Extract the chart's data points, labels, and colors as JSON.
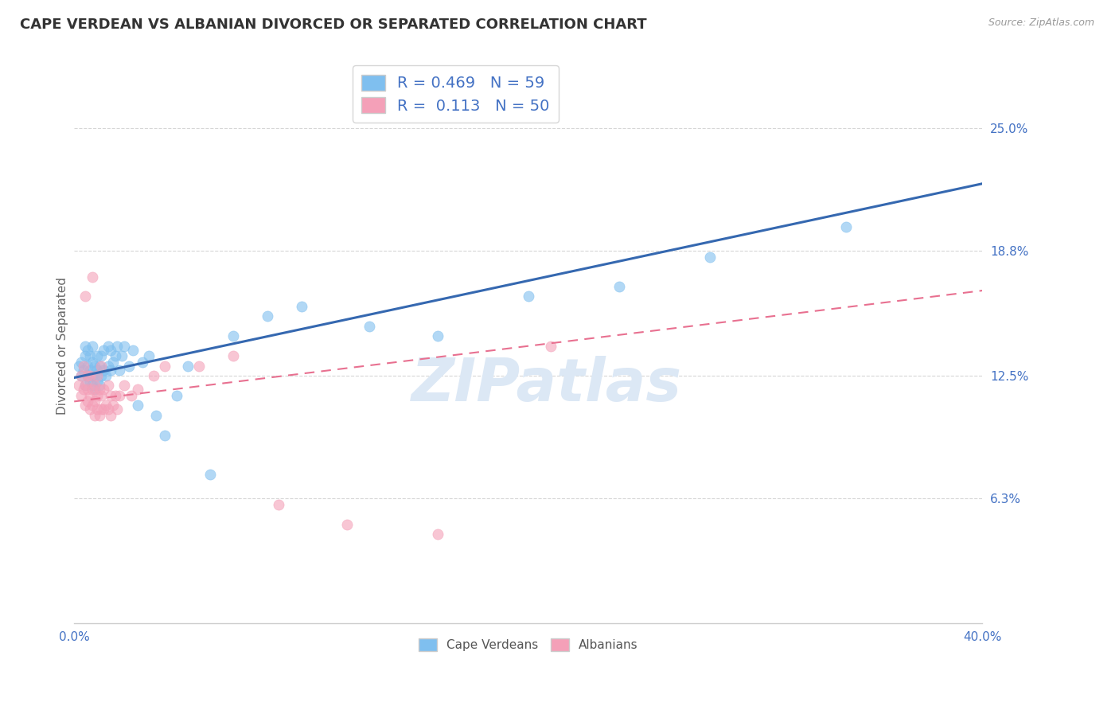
{
  "title": "CAPE VERDEAN VS ALBANIAN DIVORCED OR SEPARATED CORRELATION CHART",
  "source_text": "Source: ZipAtlas.com",
  "ylabel": "Divorced or Separated",
  "xlim": [
    0.0,
    0.4
  ],
  "ylim": [
    0.0,
    0.28
  ],
  "yticks": [
    0.063,
    0.125,
    0.188,
    0.25
  ],
  "ytick_labels": [
    "6.3%",
    "12.5%",
    "18.8%",
    "25.0%"
  ],
  "cape_verdean_R": 0.469,
  "cape_verdean_N": 59,
  "albanian_R": 0.113,
  "albanian_N": 50,
  "blue_color": "#7fbfef",
  "pink_color": "#f4a0b8",
  "blue_line_color": "#3568b0",
  "pink_line_color": "#e87090",
  "background_color": "#ffffff",
  "grid_color": "#bbbbbb",
  "legend_text_color": "#4472c4",
  "blue_line_y0": 0.124,
  "blue_line_y1": 0.222,
  "pink_line_y0": 0.112,
  "pink_line_y1": 0.168,
  "watermark": "ZIPatlas",
  "title_fontsize": 13,
  "axis_label_fontsize": 11,
  "tick_fontsize": 11,
  "legend_fontsize": 14,
  "cv_x": [
    0.002,
    0.003,
    0.003,
    0.004,
    0.005,
    0.005,
    0.005,
    0.006,
    0.006,
    0.006,
    0.007,
    0.007,
    0.007,
    0.008,
    0.008,
    0.008,
    0.008,
    0.009,
    0.009,
    0.009,
    0.01,
    0.01,
    0.01,
    0.011,
    0.011,
    0.012,
    0.012,
    0.013,
    0.013,
    0.014,
    0.015,
    0.015,
    0.016,
    0.016,
    0.017,
    0.018,
    0.019,
    0.02,
    0.021,
    0.022,
    0.024,
    0.026,
    0.028,
    0.03,
    0.033,
    0.036,
    0.04,
    0.045,
    0.05,
    0.06,
    0.07,
    0.085,
    0.1,
    0.13,
    0.16,
    0.2,
    0.24,
    0.28,
    0.34
  ],
  "cv_y": [
    0.13,
    0.125,
    0.132,
    0.128,
    0.12,
    0.135,
    0.14,
    0.125,
    0.13,
    0.138,
    0.122,
    0.128,
    0.135,
    0.12,
    0.125,
    0.132,
    0.14,
    0.118,
    0.125,
    0.13,
    0.122,
    0.128,
    0.135,
    0.12,
    0.13,
    0.125,
    0.135,
    0.128,
    0.138,
    0.125,
    0.13,
    0.14,
    0.128,
    0.138,
    0.132,
    0.135,
    0.14,
    0.128,
    0.135,
    0.14,
    0.13,
    0.138,
    0.11,
    0.132,
    0.135,
    0.105,
    0.095,
    0.115,
    0.13,
    0.075,
    0.145,
    0.155,
    0.16,
    0.15,
    0.145,
    0.165,
    0.17,
    0.185,
    0.2
  ],
  "al_x": [
    0.002,
    0.003,
    0.003,
    0.004,
    0.004,
    0.005,
    0.005,
    0.005,
    0.006,
    0.006,
    0.006,
    0.007,
    0.007,
    0.007,
    0.008,
    0.008,
    0.008,
    0.009,
    0.009,
    0.009,
    0.01,
    0.01,
    0.01,
    0.011,
    0.011,
    0.012,
    0.012,
    0.012,
    0.013,
    0.013,
    0.014,
    0.015,
    0.015,
    0.016,
    0.016,
    0.017,
    0.018,
    0.019,
    0.02,
    0.022,
    0.025,
    0.028,
    0.035,
    0.04,
    0.055,
    0.07,
    0.09,
    0.12,
    0.16,
    0.21
  ],
  "al_y": [
    0.12,
    0.115,
    0.125,
    0.118,
    0.13,
    0.11,
    0.12,
    0.165,
    0.112,
    0.118,
    0.125,
    0.108,
    0.115,
    0.125,
    0.11,
    0.118,
    0.175,
    0.105,
    0.112,
    0.12,
    0.108,
    0.115,
    0.125,
    0.105,
    0.118,
    0.108,
    0.115,
    0.13,
    0.108,
    0.118,
    0.11,
    0.108,
    0.12,
    0.105,
    0.115,
    0.11,
    0.115,
    0.108,
    0.115,
    0.12,
    0.115,
    0.118,
    0.125,
    0.13,
    0.13,
    0.135,
    0.06,
    0.05,
    0.045,
    0.14
  ]
}
